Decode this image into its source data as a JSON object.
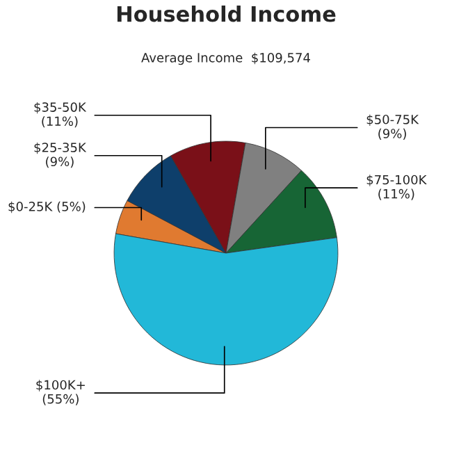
{
  "chart_data": {
    "type": "pie",
    "title": "Household Income",
    "subtitle": "Average Income  $109,574",
    "categories": [
      "$0-25K",
      "$25-35K",
      "$35-50K",
      "$50-75K",
      "$75-100K",
      "$100K+"
    ],
    "values": [
      5,
      9,
      11,
      9,
      11,
      55
    ],
    "value_labels": [
      "(5%)",
      "(9%)",
      "(11%)",
      "(9%)",
      "(11%)",
      "(55%)"
    ],
    "colors": [
      "#e07a30",
      "#0e3f6b",
      "#7a1018",
      "#808080",
      "#176535",
      "#22b8d8"
    ]
  }
}
